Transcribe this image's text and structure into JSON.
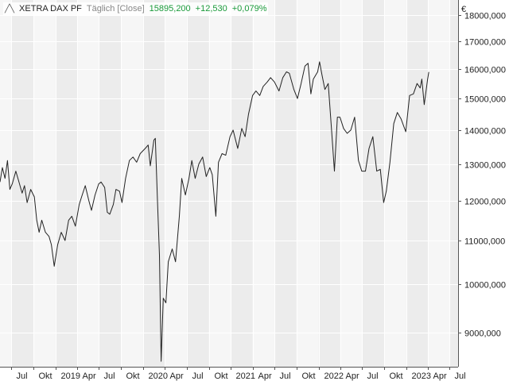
{
  "legend": {
    "icon": "line-chart-icon",
    "name": "XETRA DAX PF",
    "period": "Täglich [Close]",
    "last": "15895,200",
    "change": "+12,530",
    "change_pct": "+0,079%",
    "change_color": "#1a9a3a"
  },
  "chart_data": {
    "type": "line",
    "title": "XETRA DAX PF",
    "currency_label": "€",
    "y_scale": "log",
    "grid": true,
    "legend_position": "top-left",
    "ylim": [
      8350,
      18600
    ],
    "yticks": [
      9000,
      10000,
      11000,
      12000,
      13000,
      14000,
      15000,
      16000,
      17000,
      18000
    ],
    "ytick_labels": [
      "9000,000",
      "10000,000",
      "11000,000",
      "12000,000",
      "13000,000",
      "14000,000",
      "15000,000",
      "16000,000",
      "17000,000",
      "18000,000"
    ],
    "xlim": [
      "2018-05-15",
      "2023-08-05"
    ],
    "xticks": [
      {
        "date": "2018-07-01",
        "label": "Jul"
      },
      {
        "date": "2018-10-01",
        "label": "Okt"
      },
      {
        "date": "2019-01-01",
        "label": "2019"
      },
      {
        "date": "2019-04-01",
        "label": "Apr"
      },
      {
        "date": "2019-07-01",
        "label": "Jul"
      },
      {
        "date": "2019-10-01",
        "label": "Okt"
      },
      {
        "date": "2020-01-01",
        "label": "2020"
      },
      {
        "date": "2020-04-01",
        "label": "Apr"
      },
      {
        "date": "2020-07-01",
        "label": "Jul"
      },
      {
        "date": "2020-10-01",
        "label": "Okt"
      },
      {
        "date": "2021-01-01",
        "label": "2021"
      },
      {
        "date": "2021-04-01",
        "label": "Apr"
      },
      {
        "date": "2021-07-01",
        "label": "Jul"
      },
      {
        "date": "2021-10-01",
        "label": "Okt"
      },
      {
        "date": "2022-01-01",
        "label": "2022"
      },
      {
        "date": "2022-04-01",
        "label": "Apr"
      },
      {
        "date": "2022-07-01",
        "label": "Jul"
      },
      {
        "date": "2022-10-01",
        "label": "Okt"
      },
      {
        "date": "2023-01-01",
        "label": "2023"
      },
      {
        "date": "2023-04-01",
        "label": "Apr"
      },
      {
        "date": "2023-07-01",
        "label": "Jul"
      }
    ],
    "series": [
      {
        "name": "XETRA DAX PF",
        "color": "#222222",
        "points": [
          [
            "2018-05-15",
            12500
          ],
          [
            "2018-05-25",
            12900
          ],
          [
            "2018-06-05",
            12600
          ],
          [
            "2018-06-15",
            13100
          ],
          [
            "2018-06-25",
            12300
          ],
          [
            "2018-07-05",
            12450
          ],
          [
            "2018-07-20",
            12800
          ],
          [
            "2018-07-31",
            12550
          ],
          [
            "2018-08-15",
            12200
          ],
          [
            "2018-08-25",
            12400
          ],
          [
            "2018-09-05",
            11950
          ],
          [
            "2018-09-20",
            12300
          ],
          [
            "2018-10-05",
            12100
          ],
          [
            "2018-10-15",
            11500
          ],
          [
            "2018-10-25",
            11200
          ],
          [
            "2018-11-05",
            11500
          ],
          [
            "2018-11-20",
            11200
          ],
          [
            "2018-12-05",
            11100
          ],
          [
            "2018-12-15",
            10900
          ],
          [
            "2018-12-27",
            10400
          ],
          [
            "2019-01-10",
            10900
          ],
          [
            "2019-01-25",
            11200
          ],
          [
            "2019-02-10",
            11000
          ],
          [
            "2019-02-25",
            11500
          ],
          [
            "2019-03-10",
            11600
          ],
          [
            "2019-03-25",
            11350
          ],
          [
            "2019-04-10",
            11900
          ],
          [
            "2019-04-20",
            12100
          ],
          [
            "2019-05-05",
            12400
          ],
          [
            "2019-05-20",
            12000
          ],
          [
            "2019-05-31",
            11750
          ],
          [
            "2019-06-15",
            12150
          ],
          [
            "2019-06-30",
            12450
          ],
          [
            "2019-07-10",
            12500
          ],
          [
            "2019-07-25",
            12350
          ],
          [
            "2019-08-05",
            11700
          ],
          [
            "2019-08-15",
            11650
          ],
          [
            "2019-08-30",
            11900
          ],
          [
            "2019-09-10",
            12300
          ],
          [
            "2019-09-25",
            12250
          ],
          [
            "2019-10-05",
            11950
          ],
          [
            "2019-10-20",
            12600
          ],
          [
            "2019-11-05",
            13100
          ],
          [
            "2019-11-20",
            13200
          ],
          [
            "2019-12-05",
            13050
          ],
          [
            "2019-12-20",
            13300
          ],
          [
            "2020-01-10",
            13450
          ],
          [
            "2020-01-22",
            13550
          ],
          [
            "2020-01-31",
            12950
          ],
          [
            "2020-02-15",
            13700
          ],
          [
            "2020-02-21",
            13750
          ],
          [
            "2020-03-01",
            12000
          ],
          [
            "2020-03-09",
            10650
          ],
          [
            "2020-03-16",
            8450
          ],
          [
            "2020-03-25",
            9700
          ],
          [
            "2020-04-05",
            9600
          ],
          [
            "2020-04-15",
            10500
          ],
          [
            "2020-05-01",
            10800
          ],
          [
            "2020-05-15",
            10500
          ],
          [
            "2020-05-31",
            11600
          ],
          [
            "2020-06-10",
            12600
          ],
          [
            "2020-06-25",
            12150
          ],
          [
            "2020-07-10",
            12600
          ],
          [
            "2020-07-22",
            13100
          ],
          [
            "2020-08-05",
            12600
          ],
          [
            "2020-08-20",
            13000
          ],
          [
            "2020-09-05",
            13200
          ],
          [
            "2020-09-20",
            12650
          ],
          [
            "2020-10-05",
            12900
          ],
          [
            "2020-10-15",
            12700
          ],
          [
            "2020-10-30",
            11600
          ],
          [
            "2020-11-10",
            13050
          ],
          [
            "2020-11-25",
            13300
          ],
          [
            "2020-12-10",
            13250
          ],
          [
            "2020-12-28",
            13800
          ],
          [
            "2021-01-10",
            14000
          ],
          [
            "2021-01-29",
            13450
          ],
          [
            "2021-02-15",
            14050
          ],
          [
            "2021-03-01",
            13800
          ],
          [
            "2021-03-15",
            14500
          ],
          [
            "2021-04-01",
            15100
          ],
          [
            "2021-04-15",
            15250
          ],
          [
            "2021-05-01",
            15100
          ],
          [
            "2021-05-15",
            15400
          ],
          [
            "2021-06-01",
            15550
          ],
          [
            "2021-06-15",
            15700
          ],
          [
            "2021-07-01",
            15550
          ],
          [
            "2021-07-20",
            15250
          ],
          [
            "2021-08-05",
            15700
          ],
          [
            "2021-08-20",
            15900
          ],
          [
            "2021-09-01",
            15850
          ],
          [
            "2021-09-20",
            15300
          ],
          [
            "2021-10-05",
            15000
          ],
          [
            "2021-10-20",
            15500
          ],
          [
            "2021-11-05",
            16100
          ],
          [
            "2021-11-18",
            16200
          ],
          [
            "2021-11-30",
            15150
          ],
          [
            "2021-12-10",
            15650
          ],
          [
            "2021-12-28",
            15900
          ],
          [
            "2022-01-05",
            16250
          ],
          [
            "2022-01-15",
            15800
          ],
          [
            "2022-01-27",
            15300
          ],
          [
            "2022-02-10",
            15500
          ],
          [
            "2022-02-24",
            14000
          ],
          [
            "2022-03-08",
            12800
          ],
          [
            "2022-03-20",
            14400
          ],
          [
            "2022-03-31",
            14400
          ],
          [
            "2022-04-15",
            14050
          ],
          [
            "2022-04-30",
            13900
          ],
          [
            "2022-05-15",
            14000
          ],
          [
            "2022-05-31",
            14400
          ],
          [
            "2022-06-16",
            13100
          ],
          [
            "2022-06-30",
            12800
          ],
          [
            "2022-07-15",
            12800
          ],
          [
            "2022-07-30",
            13450
          ],
          [
            "2022-08-15",
            13800
          ],
          [
            "2022-08-31",
            12800
          ],
          [
            "2022-09-15",
            12850
          ],
          [
            "2022-09-29",
            11950
          ],
          [
            "2022-10-10",
            12250
          ],
          [
            "2022-10-25",
            13050
          ],
          [
            "2022-11-10",
            14200
          ],
          [
            "2022-11-25",
            14550
          ],
          [
            "2022-12-10",
            14350
          ],
          [
            "2022-12-30",
            13950
          ],
          [
            "2023-01-15",
            15100
          ],
          [
            "2023-01-31",
            15150
          ],
          [
            "2023-02-15",
            15500
          ],
          [
            "2023-02-28",
            15350
          ],
          [
            "2023-03-07",
            15650
          ],
          [
            "2023-03-17",
            14800
          ],
          [
            "2023-03-31",
            15650
          ],
          [
            "2023-04-05",
            15895
          ]
        ]
      }
    ]
  }
}
